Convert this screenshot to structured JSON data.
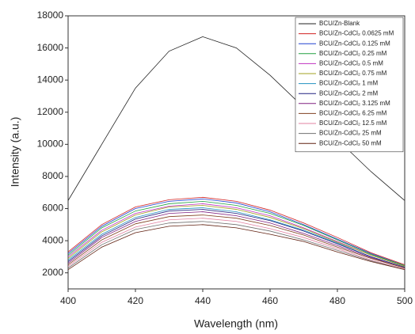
{
  "chart_data": {
    "type": "line",
    "x_label": "Wavelength (nm)",
    "y_label": "Intensity (a.u.)",
    "x": [
      400,
      410,
      420,
      430,
      440,
      450,
      460,
      470,
      480,
      490,
      500
    ],
    "xlim": [
      400,
      500
    ],
    "xticks": [
      400,
      420,
      440,
      460,
      480,
      500
    ],
    "ylim": [
      1000,
      18000
    ],
    "yticks": [
      2000,
      4000,
      6000,
      8000,
      10000,
      12000,
      14000,
      16000,
      18000
    ],
    "legend": "upper right",
    "series": [
      {
        "name": "BCU/Zn-Blank",
        "color": "#222222",
        "values": [
          6500,
          10000,
          13500,
          15800,
          16700,
          16000,
          14300,
          12300,
          10300,
          8300,
          6500
        ]
      },
      {
        "name": "BCU/Zn-CdCl₂ 0.0625 mM",
        "color": "#d02020",
        "values": [
          3300,
          5000,
          6100,
          6550,
          6700,
          6450,
          5900,
          5100,
          4200,
          3250,
          2500
        ]
      },
      {
        "name": "BCU/Zn-CdCl₂ 0.125 mM",
        "color": "#2040d0",
        "values": [
          3200,
          4900,
          6000,
          6450,
          6600,
          6350,
          5800,
          5000,
          4100,
          3200,
          2450
        ]
      },
      {
        "name": "BCU/Zn-CdCl₂ 0.25 mM",
        "color": "#20a040",
        "values": [
          3100,
          4800,
          5850,
          6300,
          6450,
          6200,
          5700,
          4950,
          4050,
          3150,
          2450
        ]
      },
      {
        "name": "BCU/Zn-CdCl₂ 0.5 mM",
        "color": "#c030c0",
        "values": [
          3000,
          4650,
          5700,
          6150,
          6300,
          6050,
          5550,
          4800,
          3950,
          3100,
          2400
        ]
      },
      {
        "name": "BCU/Zn-CdCl₂ 0.75 mM",
        "color": "#a0a020",
        "values": [
          2900,
          4550,
          5600,
          6100,
          6200,
          5950,
          5450,
          4750,
          3900,
          3100,
          2400
        ]
      },
      {
        "name": "BCU/Zn-CdCl₂ 1 mM",
        "color": "#2090c0",
        "values": [
          2800,
          4400,
          5450,
          5950,
          6050,
          5800,
          5300,
          4650,
          3850,
          3000,
          2350
        ]
      },
      {
        "name": "BCU/Zn-CdCl₂ 2 mM",
        "color": "#202080",
        "values": [
          2700,
          4300,
          5350,
          5850,
          5950,
          5700,
          5250,
          4600,
          3800,
          3000,
          2350
        ]
      },
      {
        "name": "BCU/Zn-CdCl₂ 3.125 mM",
        "color": "#802080",
        "values": [
          2600,
          4200,
          5200,
          5700,
          5800,
          5550,
          5100,
          4450,
          3700,
          2950,
          2300
        ]
      },
      {
        "name": "BCU/Zn-CdCl₂ 6.25 mM",
        "color": "#804020",
        "values": [
          2500,
          4050,
          5050,
          5500,
          5600,
          5400,
          4950,
          4350,
          3600,
          2900,
          2300
        ]
      },
      {
        "name": "BCU/Zn-CdCl₂ 12.5 mM",
        "color": "#e080a0",
        "values": [
          2400,
          3900,
          4850,
          5300,
          5400,
          5200,
          4750,
          4200,
          3500,
          2800,
          2250
        ]
      },
      {
        "name": "BCU/Zn-CdCl₂ 25 mM",
        "color": "#707070",
        "values": [
          2300,
          3750,
          4700,
          5100,
          5200,
          5000,
          4600,
          4050,
          3400,
          2750,
          2200
        ]
      },
      {
        "name": "BCU/Zn-CdCl₂ 50 mM",
        "color": "#602010",
        "values": [
          2200,
          3600,
          4500,
          4900,
          5000,
          4800,
          4400,
          3950,
          3300,
          2700,
          2200
        ]
      }
    ]
  }
}
